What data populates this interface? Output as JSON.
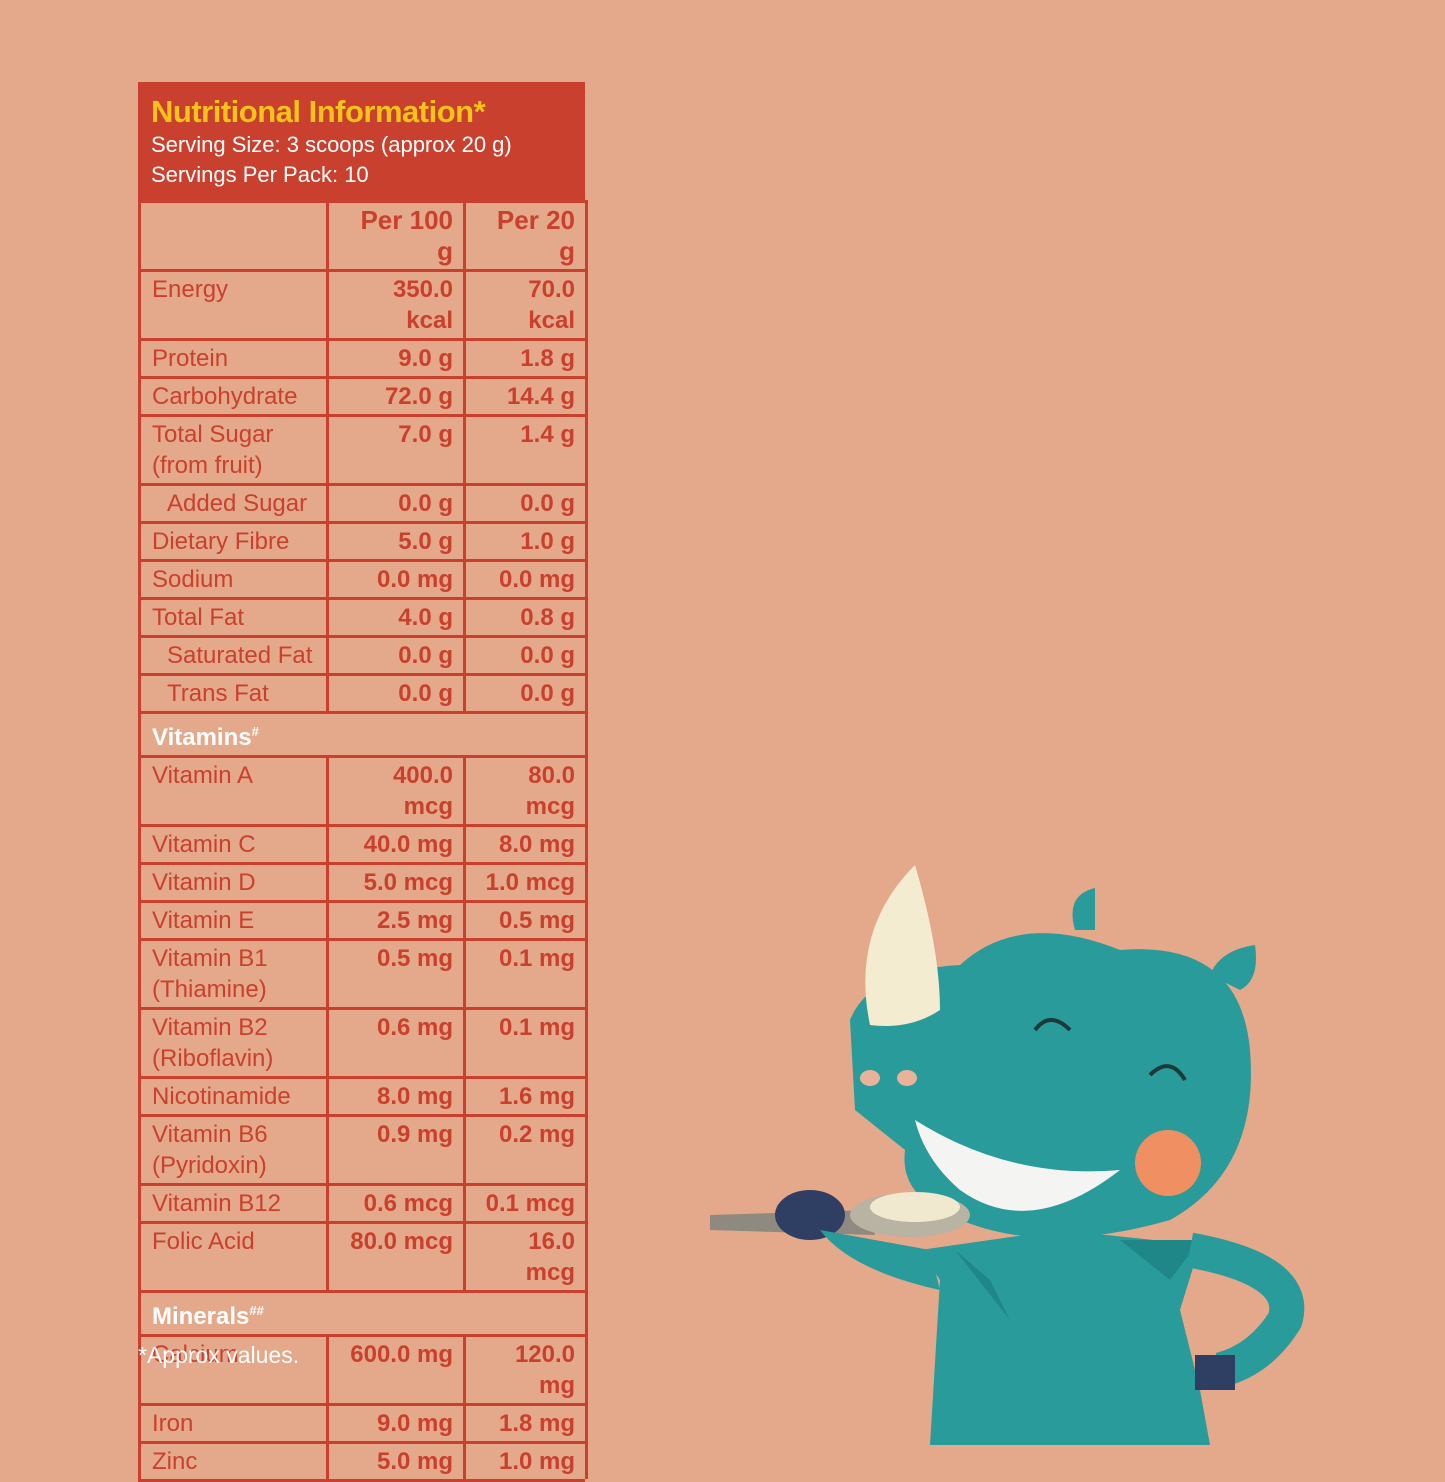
{
  "header": {
    "title": "Nutritional Information*",
    "serving_size": "Serving Size: 3 scoops (approx 20 g)",
    "servings_per_pack": "Servings Per Pack: 10"
  },
  "table": {
    "columns": [
      "Per 100 g",
      "Per 20 g"
    ],
    "rows": [
      {
        "label": "Energy",
        "per_100g": "350.0 kcal",
        "per_20g": "70.0 kcal"
      },
      {
        "label": "Protein",
        "per_100g": "9.0 g",
        "per_20g": "1.8 g"
      },
      {
        "label": "Carbohydrate",
        "per_100g": "72.0 g",
        "per_20g": "14.4 g"
      },
      {
        "label": "Total Sugar\n(from fruit)",
        "per_100g": "7.0 g",
        "per_20g": "1.4 g"
      },
      {
        "label": "Added Sugar",
        "per_100g": "0.0 g",
        "per_20g": "0.0 g",
        "indent": true
      },
      {
        "label": "Dietary Fibre",
        "per_100g": "5.0 g",
        "per_20g": "1.0 g"
      },
      {
        "label": "Sodium",
        "per_100g": "0.0 mg",
        "per_20g": "0.0 mg"
      },
      {
        "label": "Total Fat",
        "per_100g": "4.0 g",
        "per_20g": "0.8 g"
      },
      {
        "label": "Saturated Fat",
        "per_100g": "0.0 g",
        "per_20g": "0.0 g",
        "indent": true
      },
      {
        "label": "Trans Fat",
        "per_100g": "0.0 g",
        "per_20g": "0.0 g",
        "indent": true
      },
      {
        "section": "Vitamins",
        "mark": "#"
      },
      {
        "label": "Vitamin A",
        "per_100g": "400.0 mcg",
        "per_20g": "80.0 mcg"
      },
      {
        "label": "Vitamin C",
        "per_100g": "40.0 mg",
        "per_20g": "8.0 mg"
      },
      {
        "label": "Vitamin D",
        "per_100g": "5.0 mcg",
        "per_20g": "1.0 mcg"
      },
      {
        "label": "Vitamin E",
        "per_100g": "2.5 mg",
        "per_20g": "0.5 mg"
      },
      {
        "label": "Vitamin B1\n(Thiamine)",
        "per_100g": "0.5 mg",
        "per_20g": "0.1 mg"
      },
      {
        "label": "Vitamin B2\n(Riboflavin)",
        "per_100g": "0.6 mg",
        "per_20g": "0.1 mg"
      },
      {
        "label": "Nicotinamide",
        "per_100g": "8.0 mg",
        "per_20g": "1.6 mg"
      },
      {
        "label": "Vitamin B6\n(Pyridoxin)",
        "per_100g": "0.9 mg",
        "per_20g": "0.2 mg"
      },
      {
        "label": "Vitamin B12",
        "per_100g": "0.6 mcg",
        "per_20g": "0.1 mcg"
      },
      {
        "label": "Folic Acid",
        "per_100g": "80.0 mcg",
        "per_20g": "16.0 mcg"
      },
      {
        "section": "Minerals",
        "mark": "##"
      },
      {
        "label": "Calcium",
        "per_100g": "600.0 mg",
        "per_20g": "120.0 mg"
      },
      {
        "label": "Iron",
        "per_100g": "9.0 mg",
        "per_20g": "1.8 mg"
      },
      {
        "label": "Zinc",
        "per_100g": "5.0 mg",
        "per_20g": "1.0 mg"
      }
    ]
  },
  "footnote": "*Approx values."
}
